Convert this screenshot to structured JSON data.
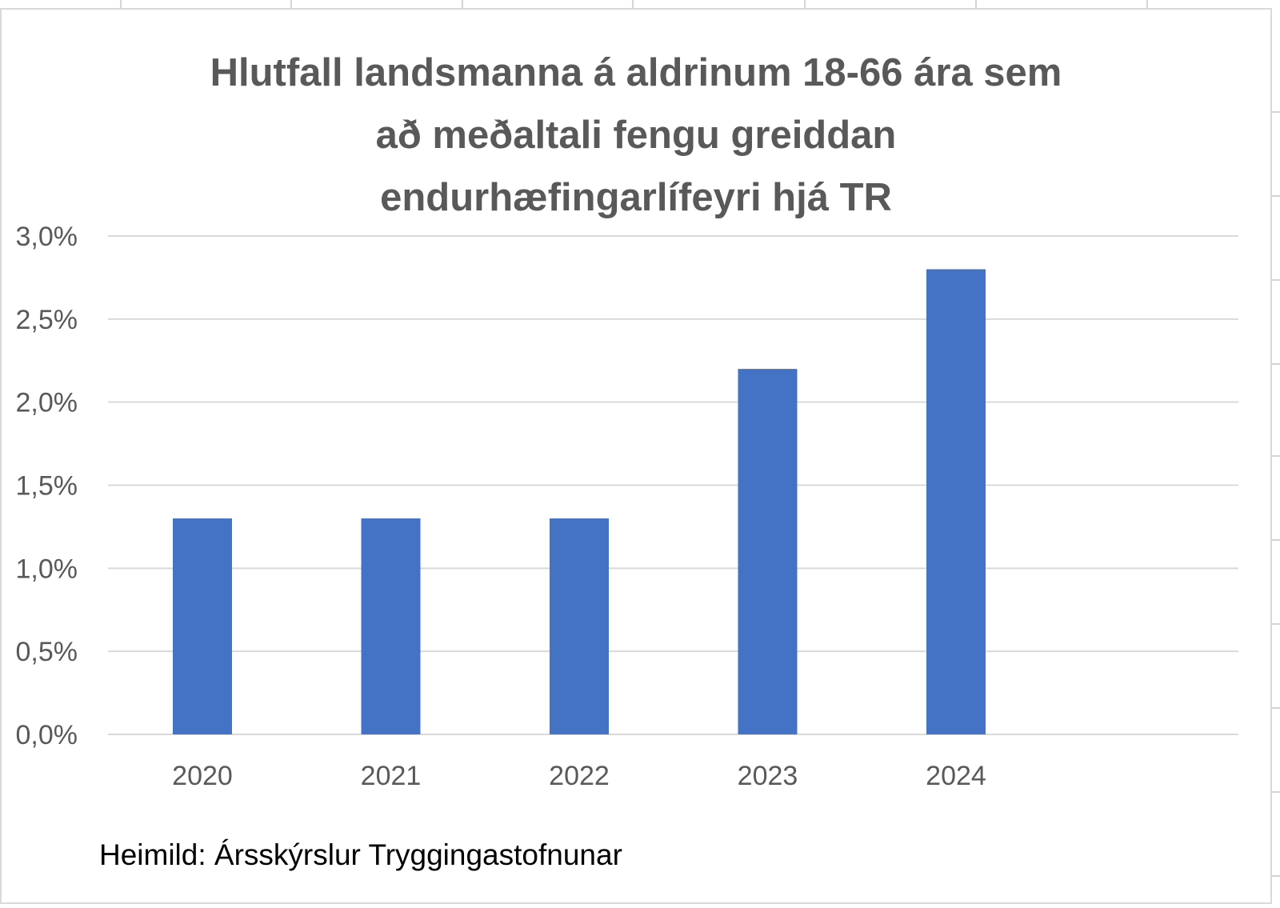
{
  "chart_data": {
    "type": "bar",
    "title_lines": [
      "Hlutfall landsmanna á aldrinum 18-66 ára sem",
      "að meðaltali fengu greiddan",
      "endurhæfingarlífeyri hjá TR"
    ],
    "categories": [
      "2020",
      "2021",
      "2022",
      "2023",
      "2024"
    ],
    "values": [
      1.3,
      1.3,
      1.3,
      2.2,
      2.8
    ],
    "value_unit": "%",
    "ylim": [
      0,
      3.0
    ],
    "yticks": [
      "0,0%",
      "0,5%",
      "1,0%",
      "1,5%",
      "2,0%",
      "2,5%",
      "3,0%"
    ],
    "xlabel": "",
    "ylabel": "",
    "grid": true,
    "legend": "none",
    "bar_color": "#4472c4",
    "gridline_color": "#d9d9d9"
  },
  "footer": {
    "source": "Heimild: Ársskýrslur Tryggingastofnunar"
  }
}
